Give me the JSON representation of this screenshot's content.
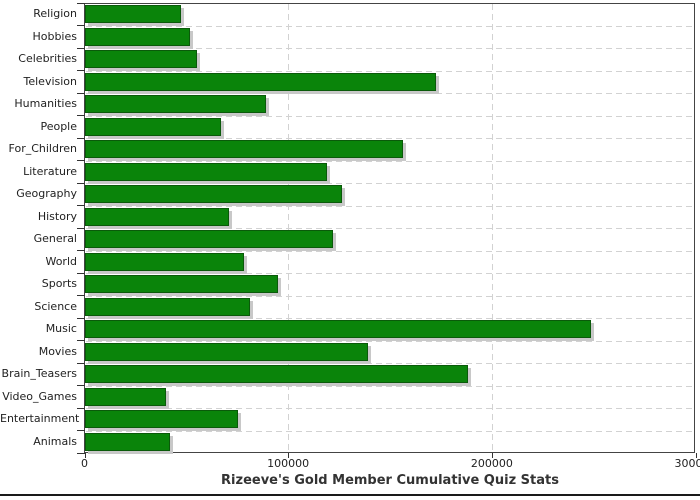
{
  "chart_data": {
    "type": "bar",
    "orientation": "horizontal",
    "title": "Rizeeve's Gold Member Cumulative Quiz Stats",
    "xlabel": "",
    "ylabel": "",
    "categories": [
      "Religion",
      "Hobbies",
      "Celebrities",
      "Television",
      "Humanities",
      "People",
      "For_Children",
      "Literature",
      "Geography",
      "History",
      "General",
      "World",
      "Sports",
      "Science",
      "Music",
      "Movies",
      "Brain_Teasers",
      "Video_Games",
      "Entertainment",
      "Animals"
    ],
    "values": [
      47000,
      51500,
      55000,
      172500,
      89000,
      67000,
      156000,
      119000,
      126000,
      70500,
      122000,
      78000,
      95000,
      81000,
      248500,
      139000,
      188000,
      40000,
      75000,
      41500
    ],
    "xlim": [
      0,
      300000
    ],
    "x_ticks": [
      0,
      100000,
      200000,
      300000
    ],
    "x_tick_labels": [
      "0",
      "100000",
      "200000",
      "300000"
    ],
    "grid": "dashed",
    "legend": "none",
    "bar_color": "#0a840a",
    "bar_border_color": "#0a5a0a",
    "shadow_color": "#c8c8c8",
    "grid_color": "#d2d2d2",
    "frame_color": "#444444",
    "text_color": "#222222",
    "title_color": "#333333"
  }
}
